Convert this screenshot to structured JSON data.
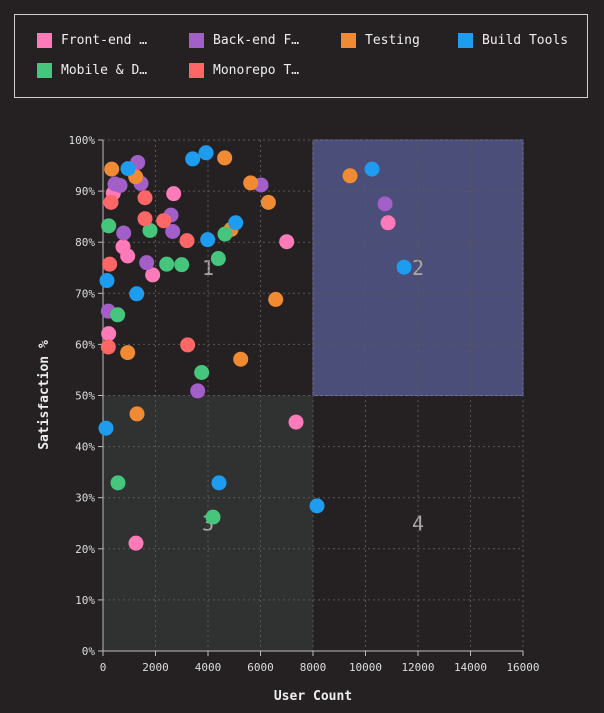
{
  "legend": [
    {
      "label": "Front-end …",
      "color": "#ff7ab8"
    },
    {
      "label": "Back-end F…",
      "color": "#a35fc8"
    },
    {
      "label": "Testing",
      "color": "#f08b33"
    },
    {
      "label": "Build Tools",
      "color": "#1e9cef"
    },
    {
      "label": "Mobile & D…",
      "color": "#46c67c"
    },
    {
      "label": "Monorepo T…",
      "color": "#ff6666"
    }
  ],
  "chart_data": {
    "type": "scatter",
    "xlabel": "User Count",
    "ylabel": "Satisfaction %",
    "xlim": [
      0,
      16000
    ],
    "ylim": [
      0,
      100
    ],
    "xticks": [
      "0",
      "2000",
      "4000",
      "6000",
      "8000",
      "10000",
      "12000",
      "14000",
      "16000"
    ],
    "yticks": [
      "0%",
      "10%",
      "20%",
      "30%",
      "40%",
      "50%",
      "60%",
      "70%",
      "80%",
      "90%",
      "100%"
    ],
    "grid": true,
    "legend_position": "top",
    "quadrants": [
      {
        "label": "1",
        "x": [
          0,
          8000
        ],
        "y": [
          50,
          100
        ],
        "fill": "none"
      },
      {
        "label": "2",
        "x": [
          8000,
          16000
        ],
        "y": [
          50,
          100
        ],
        "fill": "#4a4e78"
      },
      {
        "label": "3",
        "x": [
          0,
          8000
        ],
        "y": [
          0,
          50
        ],
        "fill": "#2f3231"
      },
      {
        "label": "4",
        "x": [
          8000,
          16000
        ],
        "y": [
          0,
          50
        ],
        "fill": "none"
      }
    ],
    "series": [
      {
        "name": "Front-end …",
        "points": [
          [
            393,
            89.6
          ],
          [
            2693,
            89.5
          ],
          [
            6998,
            80.1
          ],
          [
            762,
            79.1
          ],
          [
            940,
            77.3
          ],
          [
            1892,
            73.6
          ],
          [
            216,
            62.1
          ],
          [
            10859,
            83.8
          ],
          [
            7353,
            44.8
          ],
          [
            1257,
            21.1
          ]
        ]
      },
      {
        "name": "Back-end F…",
        "points": [
          [
            1321,
            95.6
          ],
          [
            457,
            91.4
          ],
          [
            648,
            91.1
          ],
          [
            1448,
            91.5
          ],
          [
            6020,
            91.2
          ],
          [
            2591,
            85.3
          ],
          [
            2655,
            82.1
          ],
          [
            788,
            81.8
          ],
          [
            1664,
            76.0
          ],
          [
            203,
            66.5
          ],
          [
            3607,
            50.9
          ],
          [
            10744,
            87.5
          ]
        ]
      },
      {
        "name": "Testing",
        "points": [
          [
            4636,
            96.5
          ],
          [
            331,
            94.3
          ],
          [
            1245,
            92.8
          ],
          [
            5627,
            91.6
          ],
          [
            6300,
            87.8
          ],
          [
            4877,
            82.5
          ],
          [
            6579,
            68.8
          ],
          [
            940,
            58.4
          ],
          [
            5246,
            57.1
          ],
          [
            9411,
            93.0
          ],
          [
            1295,
            46.4
          ]
        ]
      },
      {
        "name": "Build Tools",
        "points": [
          [
            3416,
            96.3
          ],
          [
            3925,
            97.5
          ],
          [
            952,
            94.4
          ],
          [
            5055,
            83.8
          ],
          [
            3988,
            80.5
          ],
          [
            152,
            72.5
          ],
          [
            1283,
            69.9
          ],
          [
            10249,
            94.3
          ],
          [
            11468,
            75.1
          ],
          [
            114,
            43.6
          ],
          [
            4420,
            32.9
          ],
          [
            8153,
            28.4
          ]
        ]
      },
      {
        "name": "Mobile & D…",
        "points": [
          [
            217,
            83.2
          ],
          [
            1791,
            82.3
          ],
          [
            4648,
            81.6
          ],
          [
            4394,
            76.8
          ],
          [
            2426,
            75.7
          ],
          [
            2998,
            75.6
          ],
          [
            559,
            65.8
          ],
          [
            3759,
            54.5
          ],
          [
            571,
            32.9
          ],
          [
            4191,
            26.2
          ]
        ]
      },
      {
        "name": "Monorepo T…",
        "points": [
          [
            305,
            87.8
          ],
          [
            1600,
            88.7
          ],
          [
            1600,
            84.6
          ],
          [
            2312,
            84.2
          ],
          [
            3200,
            80.3
          ],
          [
            254,
            75.7
          ],
          [
            203,
            59.5
          ],
          [
            3225,
            59.9
          ]
        ]
      }
    ]
  }
}
